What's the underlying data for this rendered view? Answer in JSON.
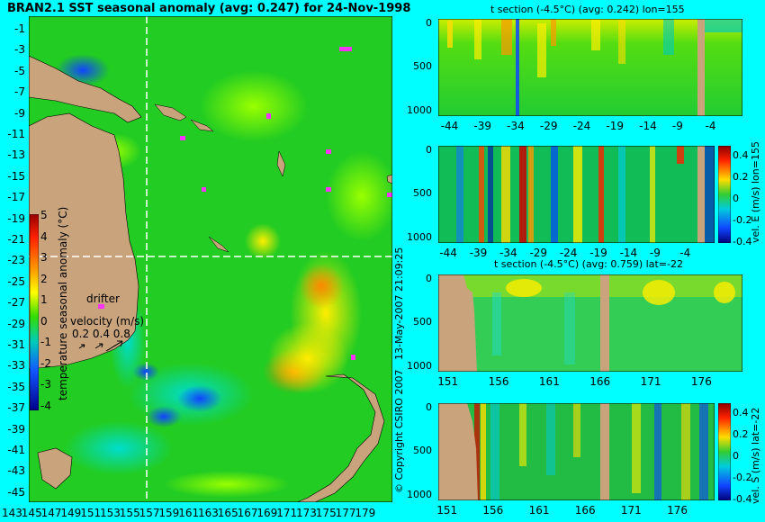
{
  "title": "BRAN2.1 SST seasonal anomaly (avg: 0.247) for 24-Nov-1998",
  "copyright": "© Copyright CSIRO 2007",
  "timestamp": "13-May-2007 21:09:25",
  "colors": {
    "background": "#00ffff",
    "land": "#c8a37c",
    "drifter": "#ff33ff"
  },
  "chart_data": [
    {
      "type": "heatmap",
      "name": "map",
      "title": "BRAN2.1 SST seasonal anomaly (avg: 0.247) for 24-Nov-1998",
      "y_ticks": [
        "-1",
        "-3",
        "-5",
        "-7",
        "-9",
        "-11",
        "-13",
        "-15",
        "-17",
        "-19",
        "-21",
        "-23",
        "-25",
        "-27",
        "-29",
        "-31",
        "-33",
        "-35",
        "-37",
        "-39",
        "-41",
        "-43",
        "-45"
      ],
      "x_ticks": [
        "143",
        "145",
        "147",
        "149",
        "151",
        "153",
        "155",
        "157",
        "159",
        "161",
        "163",
        "165",
        "167",
        "169",
        "171",
        "173",
        "175",
        "177",
        "179"
      ],
      "xlim": [
        143,
        180
      ],
      "ylim": [
        -45,
        0
      ],
      "crosshair": {
        "lon": 155,
        "lat": -22
      },
      "colorbar": {
        "label": "temperature seasonal anomaly (°C)",
        "ticks": [
          "5",
          "4",
          "3",
          "2",
          "1",
          "0",
          "-1",
          "-2",
          "-3",
          "-4"
        ],
        "range": [
          -4,
          5
        ]
      },
      "legend": {
        "drifter": "drifter",
        "velocity_label": "velocity (m/s)",
        "velocity_values": "0.2 0.4 0.8"
      }
    },
    {
      "type": "heatmap",
      "name": "t-section-lon",
      "title": "t section (-4.5°C) (avg: 0.242) lon=155",
      "x_ticks": [
        "-44",
        "-39",
        "-34",
        "-29",
        "-24",
        "-19",
        "-14",
        "-9",
        "-4"
      ],
      "y_ticks": [
        "0",
        "500",
        "1000"
      ],
      "xlim": [
        -46,
        0
      ],
      "ylim": [
        1050,
        0
      ]
    },
    {
      "type": "heatmap",
      "name": "vel-e-section",
      "title": "",
      "x_ticks": [
        "-44",
        "-39",
        "-34",
        "-29",
        "-24",
        "-19",
        "-14",
        "-9",
        "-4"
      ],
      "y_ticks": [
        "0",
        "500",
        "1000"
      ],
      "xlim": [
        -46,
        0
      ],
      "ylim": [
        1050,
        0
      ],
      "colorbar": {
        "label": "vel. E (m/s) lon=155",
        "ticks": [
          "0.4",
          "0.2",
          "0",
          "-0.2",
          "-0.4"
        ],
        "range": [
          -0.4,
          0.4
        ]
      }
    },
    {
      "type": "heatmap",
      "name": "t-section-lat",
      "title": "t section (-4.5°C) (avg: 0.759) lat=-22",
      "x_ticks": [
        "151",
        "156",
        "161",
        "166",
        "171",
        "176"
      ],
      "y_ticks": [
        "0",
        "500",
        "1000"
      ],
      "xlim": [
        150,
        180
      ],
      "ylim": [
        1050,
        0
      ]
    },
    {
      "type": "heatmap",
      "name": "vel-s-section",
      "title": "",
      "x_ticks": [
        "151",
        "156",
        "161",
        "166",
        "171",
        "176"
      ],
      "y_ticks": [
        "0",
        "500",
        "1000"
      ],
      "xlim": [
        150,
        180
      ],
      "ylim": [
        1050,
        0
      ],
      "colorbar": {
        "label": "vel. S (m/s) lat=-22",
        "ticks": [
          "0.4",
          "0.2",
          "0",
          "-0.2",
          "-0.4"
        ],
        "range": [
          -0.4,
          0.4
        ]
      }
    }
  ]
}
